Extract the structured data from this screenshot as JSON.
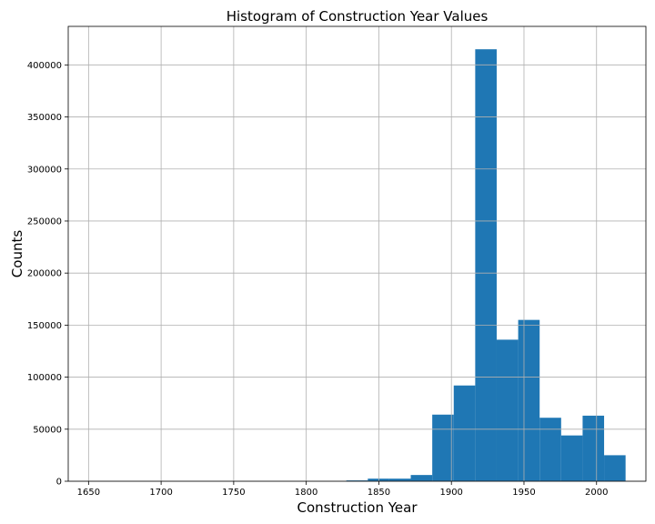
{
  "chart_data": {
    "type": "bar",
    "title": "Histogram of Construction Year Values",
    "xlabel": "Construction Year",
    "ylabel": "Counts",
    "xlim": [
      1636,
      2034
    ],
    "ylim": [
      0,
      437000
    ],
    "xticks": [
      1650,
      1700,
      1750,
      1800,
      1850,
      1900,
      1950,
      2000
    ],
    "yticks": [
      0,
      50000,
      100000,
      150000,
      200000,
      250000,
      300000,
      350000,
      400000
    ],
    "grid": true,
    "bar_color": "#1f77b4",
    "bins": [
      {
        "start": 1650.0,
        "end": 1664.8,
        "count": 0
      },
      {
        "start": 1664.8,
        "end": 1679.6,
        "count": 0
      },
      {
        "start": 1679.6,
        "end": 1694.4,
        "count": 0
      },
      {
        "start": 1694.4,
        "end": 1709.2,
        "count": 0
      },
      {
        "start": 1709.2,
        "end": 1724.0,
        "count": 0
      },
      {
        "start": 1724.0,
        "end": 1738.8,
        "count": 0
      },
      {
        "start": 1738.8,
        "end": 1753.6,
        "count": 0
      },
      {
        "start": 1753.6,
        "end": 1768.4,
        "count": 0
      },
      {
        "start": 1768.4,
        "end": 1783.2,
        "count": 0
      },
      {
        "start": 1783.2,
        "end": 1798.0,
        "count": 0
      },
      {
        "start": 1798.0,
        "end": 1812.8,
        "count": 0
      },
      {
        "start": 1812.8,
        "end": 1827.6,
        "count": 0
      },
      {
        "start": 1827.6,
        "end": 1842.4,
        "count": 800
      },
      {
        "start": 1842.4,
        "end": 1857.2,
        "count": 2500
      },
      {
        "start": 1857.2,
        "end": 1872.0,
        "count": 2500
      },
      {
        "start": 1872.0,
        "end": 1886.8,
        "count": 6000
      },
      {
        "start": 1886.8,
        "end": 1901.6,
        "count": 64000
      },
      {
        "start": 1901.6,
        "end": 1916.4,
        "count": 92000
      },
      {
        "start": 1916.4,
        "end": 1931.2,
        "count": 415000
      },
      {
        "start": 1931.2,
        "end": 1946.0,
        "count": 136000
      },
      {
        "start": 1946.0,
        "end": 1960.8,
        "count": 155000
      },
      {
        "start": 1960.8,
        "end": 1975.6,
        "count": 61000
      },
      {
        "start": 1975.6,
        "end": 1990.4,
        "count": 44000
      },
      {
        "start": 1990.4,
        "end": 2005.2,
        "count": 63000
      },
      {
        "start": 2005.2,
        "end": 2020.0,
        "count": 25000
      }
    ]
  }
}
